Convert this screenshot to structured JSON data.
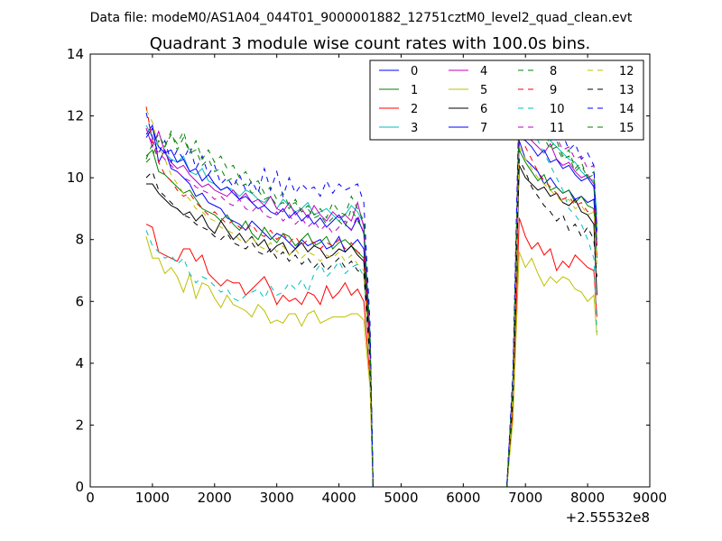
{
  "chart_data": {
    "type": "line",
    "suptitle": "Data file: modeM0/AS1A04_044T01_9000001882_12751cztM0_level2_quad_clean.evt",
    "title": "Quadrant 3 module wise count rates with 100.0s bins.",
    "xlabel": "",
    "ylabel": "",
    "x_offset_label": "+2.55532e8",
    "xlim": [
      0,
      9000
    ],
    "ylim": [
      0,
      14
    ],
    "xticks": [
      0,
      1000,
      2000,
      3000,
      4000,
      5000,
      6000,
      7000,
      8000,
      9000
    ],
    "yticks": [
      0,
      2,
      4,
      6,
      8,
      10,
      12,
      14
    ],
    "legend": {
      "placement": "top-right",
      "columns": 4,
      "entries": [
        "0",
        "1",
        "2",
        "3",
        "4",
        "5",
        "6",
        "7",
        "8",
        "9",
        "10",
        "11",
        "12",
        "13",
        "14",
        "15"
      ]
    },
    "x": [
      900,
      1000,
      1100,
      1200,
      1300,
      1400,
      1500,
      1600,
      1700,
      1800,
      1900,
      2000,
      2100,
      2200,
      2300,
      2400,
      2500,
      2600,
      2700,
      2800,
      2900,
      3000,
      3100,
      3200,
      3300,
      3400,
      3500,
      3600,
      3700,
      3800,
      3900,
      4000,
      4100,
      4200,
      4300,
      4400,
      4500,
      4550,
      6700,
      6800,
      6900,
      7000,
      7100,
      7200,
      7300,
      7400,
      7500,
      7600,
      7700,
      7800,
      7900,
      8000,
      8100,
      8150
    ],
    "series": [
      {
        "name": "0",
        "color": "#0000ff",
        "dash": "solid",
        "values": [
          11.4,
          11.7,
          10.5,
          10.9,
          10.3,
          10.2,
          10.0,
          9.8,
          9.4,
          9.5,
          9.2,
          9.1,
          9.0,
          8.7,
          8.6,
          8.5,
          8.3,
          8.6,
          8.4,
          8.2,
          8.0,
          8.2,
          8.1,
          7.9,
          7.7,
          8.0,
          7.8,
          7.9,
          8.0,
          7.7,
          7.8,
          8.1,
          7.6,
          7.8,
          8.0,
          7.7,
          4.5,
          0,
          0,
          3,
          11.2,
          10.6,
          10.4,
          10.2,
          9.8,
          10.0,
          9.7,
          9.5,
          9.6,
          9.3,
          9.4,
          9.2,
          9.3,
          7.8
        ]
      },
      {
        "name": "1",
        "color": "#008000",
        "dash": "solid",
        "values": [
          10.7,
          10.9,
          10.2,
          10.1,
          9.9,
          9.7,
          9.5,
          9.6,
          9.3,
          9.0,
          8.9,
          8.8,
          8.6,
          8.8,
          8.5,
          8.3,
          8.6,
          8.2,
          8.0,
          8.4,
          8.1,
          7.9,
          8.2,
          8.1,
          7.8,
          8.0,
          8.2,
          7.8,
          7.9,
          8.1,
          7.7,
          7.9,
          8.0,
          7.8,
          7.6,
          7.4,
          4.5,
          0,
          0,
          3,
          10.9,
          10.5,
          10.2,
          9.9,
          10.1,
          9.6,
          9.7,
          9.5,
          9.6,
          9.2,
          9.4,
          9.1,
          9.0,
          7.4
        ]
      },
      {
        "name": "2",
        "color": "#ff0000",
        "dash": "solid",
        "values": [
          8.5,
          8.4,
          7.6,
          7.5,
          7.4,
          7.3,
          7.7,
          7.7,
          7.3,
          7.5,
          6.9,
          6.7,
          6.5,
          6.7,
          6.6,
          6.6,
          6.2,
          6.4,
          6.6,
          6.8,
          6.4,
          5.9,
          6.2,
          6.0,
          6.1,
          5.9,
          6.3,
          6.2,
          5.9,
          6.5,
          6.1,
          6.3,
          6.6,
          6.2,
          6.4,
          6.0,
          3.5,
          0,
          0,
          2.5,
          8.7,
          8.1,
          7.7,
          7.9,
          7.5,
          7.7,
          7.0,
          7.3,
          7.1,
          7.5,
          7.3,
          7.1,
          7.0,
          5.5
        ]
      },
      {
        "name": "3",
        "color": "#00bfbf",
        "dash": "solid",
        "values": [
          11.7,
          11.3,
          11.0,
          10.8,
          10.6,
          10.5,
          10.7,
          10.2,
          10.1,
          10.3,
          9.9,
          9.8,
          9.6,
          9.7,
          9.6,
          9.4,
          9.6,
          9.5,
          9.3,
          9.2,
          9.4,
          9.0,
          9.3,
          9.1,
          8.9,
          9.0,
          9.2,
          8.8,
          8.9,
          9.0,
          8.8,
          8.6,
          8.8,
          9.1,
          8.9,
          8.5,
          5.0,
          0,
          0,
          3.5,
          12.0,
          11.6,
          11.4,
          11.8,
          11.5,
          11.2,
          11.0,
          10.8,
          10.6,
          10.5,
          10.2,
          10.0,
          9.9,
          8.8
        ]
      },
      {
        "name": "4",
        "color": "#bf00bf",
        "dash": "solid",
        "values": [
          11.6,
          11.0,
          11.5,
          10.8,
          10.5,
          10.3,
          10.4,
          10.1,
          9.9,
          9.7,
          9.8,
          9.6,
          9.5,
          9.4,
          9.6,
          9.3,
          9.5,
          9.2,
          9.3,
          9.1,
          9.4,
          9.0,
          8.9,
          9.2,
          8.8,
          9.0,
          8.7,
          9.1,
          8.8,
          8.6,
          8.9,
          8.7,
          8.8,
          8.6,
          9.2,
          8.4,
          4.8,
          0,
          0,
          3.5,
          11.8,
          11.4,
          11.2,
          11.0,
          10.8,
          11.1,
          10.6,
          10.4,
          10.5,
          10.2,
          10.0,
          10.1,
          9.8,
          8.5
        ]
      },
      {
        "name": "5",
        "color": "#bfbf00",
        "dash": "solid",
        "values": [
          8.1,
          7.4,
          7.4,
          6.9,
          7.1,
          6.8,
          6.3,
          6.9,
          6.1,
          6.6,
          6.5,
          6.1,
          5.8,
          6.2,
          5.9,
          5.8,
          5.7,
          5.5,
          5.9,
          5.7,
          5.3,
          5.4,
          5.3,
          5.6,
          5.6,
          5.2,
          5.6,
          5.7,
          5.3,
          5.4,
          5.5,
          5.5,
          5.5,
          5.6,
          5.6,
          5.4,
          3.2,
          0,
          0,
          2.2,
          7.6,
          7.1,
          7.4,
          6.9,
          6.5,
          6.8,
          6.6,
          6.8,
          6.7,
          6.4,
          6.3,
          6.0,
          6.2,
          4.9
        ]
      },
      {
        "name": "6",
        "color": "#000000",
        "dash": "solid",
        "values": [
          9.8,
          9.8,
          9.5,
          9.3,
          9.1,
          9.0,
          8.8,
          8.9,
          8.6,
          8.8,
          8.4,
          8.2,
          8.6,
          8.3,
          8.0,
          8.2,
          7.9,
          8.1,
          7.8,
          8.0,
          7.6,
          7.8,
          7.9,
          7.5,
          7.7,
          7.9,
          7.6,
          7.8,
          7.7,
          7.4,
          7.5,
          7.7,
          7.6,
          7.8,
          7.5,
          7.3,
          4.3,
          0,
          0,
          3,
          10.4,
          10.0,
          9.8,
          9.6,
          9.7,
          9.4,
          9.5,
          9.2,
          9.1,
          9.3,
          8.9,
          8.8,
          8.5,
          6.2
        ]
      },
      {
        "name": "7",
        "color": "#0000ff",
        "dash": "solid",
        "values": [
          11.3,
          11.6,
          11.0,
          10.8,
          10.9,
          10.5,
          10.6,
          10.2,
          10.3,
          9.9,
          10.1,
          9.8,
          9.6,
          9.7,
          9.5,
          9.3,
          9.4,
          9.2,
          9.0,
          9.1,
          8.9,
          8.8,
          9.0,
          8.7,
          8.9,
          8.6,
          8.8,
          8.5,
          8.7,
          8.4,
          8.6,
          8.8,
          8.5,
          8.3,
          8.7,
          8.2,
          4.7,
          0,
          0,
          3.4,
          11.6,
          11.2,
          11.0,
          10.7,
          10.9,
          10.5,
          10.6,
          10.3,
          10.4,
          10.1,
          9.9,
          10.0,
          9.7,
          8.3
        ]
      },
      {
        "name": "8",
        "color": "#008000",
        "dash": "dashed",
        "values": [
          10.5,
          10.7,
          11.2,
          11.0,
          11.4,
          11.1,
          11.5,
          10.8,
          10.9,
          10.4,
          10.6,
          10.2,
          10.3,
          9.9,
          10.0,
          9.7,
          9.8,
          9.5,
          9.6,
          9.3,
          9.4,
          9.1,
          9.2,
          9.0,
          9.3,
          8.9,
          9.1,
          8.8,
          9.0,
          8.7,
          9.2,
          8.9,
          8.8,
          9.4,
          9.0,
          8.6,
          5.1,
          0,
          0,
          3.6,
          12.2,
          11.7,
          11.9,
          11.4,
          11.6,
          11.0,
          11.2,
          10.7,
          10.9,
          10.3,
          10.5,
          10.0,
          10.2,
          8.2
        ]
      },
      {
        "name": "9",
        "color": "#ff0000",
        "dash": "dashed",
        "values": [
          12.3,
          11.2,
          10.5,
          10.1,
          9.9,
          9.6,
          9.4,
          9.5,
          9.2,
          9.0,
          8.8,
          8.9,
          8.7,
          8.5,
          8.6,
          8.4,
          8.3,
          8.5,
          8.2,
          8.1,
          8.3,
          8.0,
          8.2,
          7.9,
          8.1,
          7.8,
          8.0,
          7.9,
          7.7,
          7.9,
          7.8,
          8.0,
          7.7,
          7.9,
          7.6,
          7.5,
          4.4,
          0,
          0,
          3.3,
          12.2,
          11.0,
          10.6,
          10.2,
          9.9,
          9.7,
          9.5,
          9.3,
          9.4,
          9.1,
          9.2,
          8.9,
          9.0,
          7.5
        ]
      },
      {
        "name": "10",
        "color": "#00bfbf",
        "dash": "dashed",
        "values": [
          8.3,
          7.8,
          7.6,
          7.4,
          7.5,
          7.2,
          7.4,
          6.9,
          6.6,
          6.8,
          6.7,
          6.5,
          6.3,
          6.4,
          6.1,
          6.0,
          6.2,
          6.3,
          6.4,
          6.1,
          6.5,
          6.2,
          6.3,
          6.6,
          6.4,
          6.7,
          6.3,
          6.9,
          7.2,
          6.8,
          7.0,
          7.3,
          6.9,
          7.1,
          7.2,
          6.8,
          4.0,
          0,
          0,
          3,
          12.8,
          11.8,
          11.5,
          11.2,
          10.8,
          10.4,
          10.0,
          9.6,
          9.0,
          8.8,
          8.5,
          8.0,
          7.4,
          5.0
        ]
      },
      {
        "name": "11",
        "color": "#bf00bf",
        "dash": "dashed",
        "values": [
          11.6,
          11.1,
          10.8,
          10.6,
          10.4,
          10.2,
          10.0,
          9.9,
          9.7,
          9.6,
          9.5,
          9.3,
          9.4,
          9.2,
          9.1,
          9.3,
          9.0,
          8.9,
          9.1,
          8.8,
          8.7,
          8.9,
          8.6,
          8.8,
          8.5,
          8.7,
          8.4,
          8.6,
          8.3,
          8.5,
          8.2,
          8.4,
          8.6,
          8.3,
          8.8,
          8.2,
          4.7,
          0,
          0,
          3.5,
          12.5,
          11.9,
          11.7,
          11.4,
          11.6,
          11.2,
          11.3,
          10.9,
          11.0,
          10.6,
          10.7,
          10.3,
          10.4,
          8.0
        ]
      },
      {
        "name": "12",
        "color": "#bfbf00",
        "dash": "dashed",
        "values": [
          12.2,
          11.8,
          11.0,
          10.6,
          10.1,
          9.8,
          9.5,
          9.3,
          9.0,
          8.9,
          8.7,
          8.6,
          8.4,
          8.3,
          8.2,
          8.0,
          7.9,
          8.1,
          7.8,
          7.7,
          7.9,
          7.6,
          7.8,
          7.5,
          7.7,
          7.4,
          7.6,
          7.5,
          7.3,
          7.5,
          7.4,
          7.6,
          7.3,
          7.5,
          7.2,
          7.0,
          4.1,
          0,
          0,
          3.1,
          11.0,
          10.6,
          10.3,
          10.0,
          9.8,
          9.6,
          9.4,
          9.2,
          9.3,
          9.0,
          9.1,
          8.8,
          8.9,
          7.2
        ]
      },
      {
        "name": "13",
        "color": "#000000",
        "dash": "dashed",
        "values": [
          10.0,
          10.2,
          9.6,
          9.4,
          9.2,
          9.0,
          8.8,
          8.7,
          8.5,
          8.4,
          8.3,
          8.1,
          8.0,
          8.2,
          7.9,
          7.8,
          7.7,
          7.9,
          7.6,
          7.5,
          7.7,
          7.4,
          7.6,
          7.3,
          7.5,
          7.2,
          7.4,
          7.1,
          7.3,
          7.0,
          7.2,
          7.4,
          7.1,
          7.3,
          7.0,
          6.9,
          4.0,
          0,
          0,
          2.9,
          10.6,
          10.2,
          9.7,
          9.4,
          9.1,
          8.9,
          8.6,
          8.8,
          8.3,
          8.5,
          8.1,
          8.4,
          8.0,
          6.8
        ]
      },
      {
        "name": "14",
        "color": "#0000ff",
        "dash": "dashed",
        "values": [
          12.1,
          11.3,
          10.8,
          11.2,
          10.5,
          10.9,
          10.6,
          11.0,
          10.3,
          10.7,
          10.1,
          10.4,
          9.8,
          10.0,
          9.7,
          10.1,
          9.6,
          9.9,
          9.5,
          10.3,
          9.6,
          10.2,
          9.4,
          10.0,
          9.5,
          9.8,
          9.6,
          9.7,
          9.4,
          9.9,
          9.5,
          9.8,
          9.6,
          9.7,
          9.8,
          9.2,
          5.3,
          0,
          0,
          3.8,
          12.7,
          12.2,
          11.8,
          12.0,
          11.5,
          11.7,
          11.2,
          11.4,
          10.9,
          11.1,
          10.6,
          10.8,
          10.4,
          8.1
        ]
      },
      {
        "name": "15",
        "color": "#008000",
        "dash": "dashed",
        "values": [
          10.6,
          11.1,
          11.4,
          11.0,
          11.5,
          10.9,
          11.3,
          10.8,
          11.2,
          10.6,
          10.9,
          10.5,
          10.7,
          10.3,
          10.4,
          10.0,
          10.2,
          9.8,
          9.9,
          9.5,
          9.7,
          9.3,
          9.5,
          9.1,
          9.2,
          8.9,
          9.0,
          8.7,
          8.8,
          8.5,
          8.7,
          8.6,
          8.4,
          9.0,
          8.6,
          8.3,
          4.9,
          0,
          0,
          3.4,
          12.0,
          11.5,
          11.6,
          11.2,
          11.3,
          10.9,
          11.0,
          10.6,
          10.7,
          10.2,
          10.4,
          10.0,
          10.1,
          7.9
        ]
      }
    ]
  }
}
